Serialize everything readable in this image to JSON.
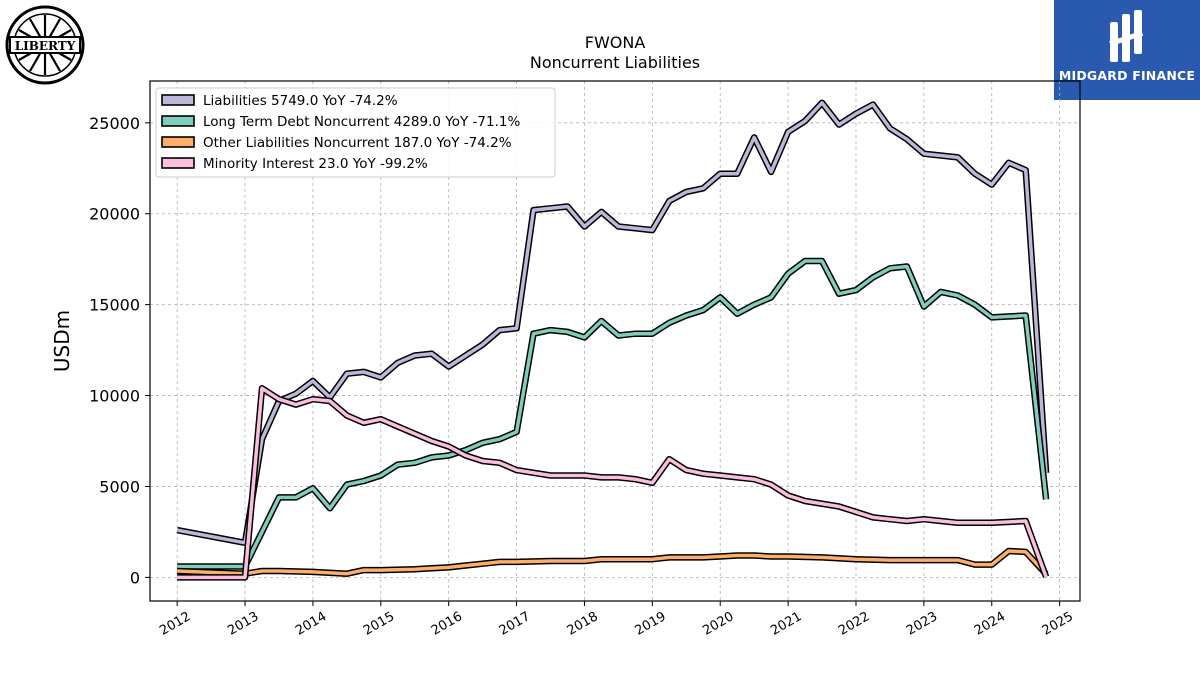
{
  "logos": {
    "left_text": "LIBERTY",
    "right_text": "MIDGARD FINANCE",
    "right_bg": "#2a5ab0"
  },
  "chart_data": {
    "type": "line",
    "title": "FWONA",
    "subtitle": "Noncurrent  Liabilities",
    "ylabel": "USDm",
    "xlabel": "",
    "xlim": [
      2011.6,
      2025.3
    ],
    "ylim": [
      -1300,
      27300
    ],
    "yticks": [
      0,
      5000,
      10000,
      15000,
      20000,
      25000
    ],
    "ytick_labels": [
      "0",
      "5000",
      "10000",
      "15000",
      "20000",
      "25000"
    ],
    "xticks": [
      2012,
      2013,
      2014,
      2015,
      2016,
      2017,
      2018,
      2019,
      2020,
      2021,
      2022,
      2023,
      2024,
      2025
    ],
    "xtick_labels": [
      "2012",
      "2013",
      "2014",
      "2015",
      "2016",
      "2017",
      "2018",
      "2019",
      "2020",
      "2021",
      "2022",
      "2023",
      "2024",
      "2025"
    ],
    "grid": true,
    "legend_position": "top-left",
    "series": [
      {
        "name": "Liabilities",
        "legend_label": "Liabilities  5749.0 YoY -74.2%",
        "color": "#bcb8d9",
        "points": [
          [
            2012.0,
            2600
          ],
          [
            2013.0,
            1900
          ],
          [
            2013.25,
            7600
          ],
          [
            2013.5,
            9700
          ],
          [
            2013.75,
            10100
          ],
          [
            2014.0,
            10800
          ],
          [
            2014.25,
            9900
          ],
          [
            2014.5,
            11200
          ],
          [
            2014.75,
            11300
          ],
          [
            2015.0,
            11000
          ],
          [
            2015.25,
            11800
          ],
          [
            2015.5,
            12200
          ],
          [
            2015.75,
            12300
          ],
          [
            2016.0,
            11600
          ],
          [
            2016.5,
            12800
          ],
          [
            2016.75,
            13600
          ],
          [
            2017.0,
            13700
          ],
          [
            2017.25,
            20200
          ],
          [
            2017.5,
            20300
          ],
          [
            2017.75,
            20400
          ],
          [
            2018.0,
            19300
          ],
          [
            2018.25,
            20100
          ],
          [
            2018.5,
            19300
          ],
          [
            2018.75,
            19200
          ],
          [
            2019.0,
            19100
          ],
          [
            2019.25,
            20700
          ],
          [
            2019.5,
            21200
          ],
          [
            2019.75,
            21400
          ],
          [
            2020.0,
            22200
          ],
          [
            2020.25,
            22200
          ],
          [
            2020.5,
            24200
          ],
          [
            2020.75,
            22300
          ],
          [
            2021.0,
            24500
          ],
          [
            2021.25,
            25100
          ],
          [
            2021.5,
            26100
          ],
          [
            2021.75,
            24900
          ],
          [
            2022.0,
            25500
          ],
          [
            2022.25,
            26000
          ],
          [
            2022.5,
            24700
          ],
          [
            2022.75,
            24100
          ],
          [
            2023.0,
            23300
          ],
          [
            2023.5,
            23100
          ],
          [
            2023.75,
            22200
          ],
          [
            2024.0,
            21600
          ],
          [
            2024.25,
            22800
          ],
          [
            2024.5,
            22400
          ],
          [
            2024.8,
            5749
          ]
        ]
      },
      {
        "name": "Long Term Debt Noncurrent",
        "legend_label": "Long Term Debt Noncurrent  4289.0 YoY -71.1%",
        "color": "#7fcdbb",
        "points": [
          [
            2012.0,
            600
          ],
          [
            2013.0,
            600
          ],
          [
            2013.25,
            2500
          ],
          [
            2013.5,
            4400
          ],
          [
            2013.75,
            4400
          ],
          [
            2014.0,
            4900
          ],
          [
            2014.25,
            3800
          ],
          [
            2014.5,
            5100
          ],
          [
            2014.75,
            5300
          ],
          [
            2015.0,
            5600
          ],
          [
            2015.25,
            6200
          ],
          [
            2015.5,
            6300
          ],
          [
            2015.75,
            6600
          ],
          [
            2016.0,
            6700
          ],
          [
            2016.25,
            7000
          ],
          [
            2016.5,
            7400
          ],
          [
            2016.75,
            7600
          ],
          [
            2017.0,
            8000
          ],
          [
            2017.25,
            13400
          ],
          [
            2017.5,
            13600
          ],
          [
            2017.75,
            13500
          ],
          [
            2018.0,
            13200
          ],
          [
            2018.25,
            14100
          ],
          [
            2018.5,
            13300
          ],
          [
            2018.75,
            13400
          ],
          [
            2019.0,
            13400
          ],
          [
            2019.25,
            14000
          ],
          [
            2019.5,
            14400
          ],
          [
            2019.75,
            14700
          ],
          [
            2020.0,
            15400
          ],
          [
            2020.25,
            14500
          ],
          [
            2020.5,
            15000
          ],
          [
            2020.75,
            15400
          ],
          [
            2021.0,
            16700
          ],
          [
            2021.25,
            17400
          ],
          [
            2021.5,
            17400
          ],
          [
            2021.75,
            15600
          ],
          [
            2022.0,
            15800
          ],
          [
            2022.25,
            16500
          ],
          [
            2022.5,
            17000
          ],
          [
            2022.75,
            17100
          ],
          [
            2023.0,
            14900
          ],
          [
            2023.25,
            15700
          ],
          [
            2023.5,
            15500
          ],
          [
            2023.75,
            15000
          ],
          [
            2024.0,
            14300
          ],
          [
            2024.5,
            14400
          ],
          [
            2024.8,
            4289
          ]
        ]
      },
      {
        "name": "Other Liabilities Noncurrent",
        "legend_label": "Other Liabilities Noncurrent  187.0 YoY -74.2%",
        "color": "#fdae6b",
        "points": [
          [
            2012.0,
            350
          ],
          [
            2013.0,
            200
          ],
          [
            2013.25,
            350
          ],
          [
            2013.5,
            350
          ],
          [
            2014.0,
            300
          ],
          [
            2014.5,
            200
          ],
          [
            2014.75,
            400
          ],
          [
            2015.0,
            400
          ],
          [
            2015.5,
            450
          ],
          [
            2015.75,
            500
          ],
          [
            2016.0,
            550
          ],
          [
            2016.25,
            650
          ],
          [
            2016.5,
            750
          ],
          [
            2016.75,
            850
          ],
          [
            2017.0,
            850
          ],
          [
            2017.5,
            900
          ],
          [
            2018.0,
            900
          ],
          [
            2018.25,
            1000
          ],
          [
            2018.75,
            1000
          ],
          [
            2019.0,
            1000
          ],
          [
            2019.25,
            1100
          ],
          [
            2019.75,
            1100
          ],
          [
            2020.0,
            1150
          ],
          [
            2020.25,
            1200
          ],
          [
            2020.5,
            1200
          ],
          [
            2020.75,
            1150
          ],
          [
            2021.0,
            1150
          ],
          [
            2021.5,
            1100
          ],
          [
            2022.0,
            1000
          ],
          [
            2022.5,
            950
          ],
          [
            2023.0,
            950
          ],
          [
            2023.5,
            950
          ],
          [
            2023.75,
            700
          ],
          [
            2024.0,
            700
          ],
          [
            2024.25,
            1450
          ],
          [
            2024.5,
            1400
          ],
          [
            2024.8,
            187
          ]
        ]
      },
      {
        "name": "Minority Interest",
        "legend_label": "Minority Interest  23.0 YoY -99.2%",
        "color": "#fbbfdd",
        "points": [
          [
            2012.0,
            0
          ],
          [
            2013.0,
            0
          ],
          [
            2013.25,
            10400
          ],
          [
            2013.5,
            9800
          ],
          [
            2013.75,
            9500
          ],
          [
            2014.0,
            9800
          ],
          [
            2014.25,
            9700
          ],
          [
            2014.5,
            8900
          ],
          [
            2014.75,
            8500
          ],
          [
            2015.0,
            8700
          ],
          [
            2015.5,
            7900
          ],
          [
            2015.75,
            7500
          ],
          [
            2016.0,
            7200
          ],
          [
            2016.25,
            6700
          ],
          [
            2016.5,
            6400
          ],
          [
            2016.75,
            6300
          ],
          [
            2017.0,
            5900
          ],
          [
            2017.5,
            5600
          ],
          [
            2018.0,
            5600
          ],
          [
            2018.25,
            5500
          ],
          [
            2018.5,
            5500
          ],
          [
            2018.75,
            5400
          ],
          [
            2019.0,
            5200
          ],
          [
            2019.25,
            6500
          ],
          [
            2019.5,
            5900
          ],
          [
            2019.75,
            5700
          ],
          [
            2020.0,
            5600
          ],
          [
            2020.25,
            5500
          ],
          [
            2020.5,
            5400
          ],
          [
            2020.75,
            5100
          ],
          [
            2021.0,
            4500
          ],
          [
            2021.25,
            4200
          ],
          [
            2021.75,
            3900
          ],
          [
            2022.0,
            3600
          ],
          [
            2022.25,
            3300
          ],
          [
            2022.5,
            3200
          ],
          [
            2022.75,
            3100
          ],
          [
            2023.0,
            3200
          ],
          [
            2023.25,
            3100
          ],
          [
            2023.5,
            3000
          ],
          [
            2023.75,
            3000
          ],
          [
            2024.0,
            3000
          ],
          [
            2024.5,
            3100
          ],
          [
            2024.8,
            23
          ]
        ]
      }
    ]
  }
}
